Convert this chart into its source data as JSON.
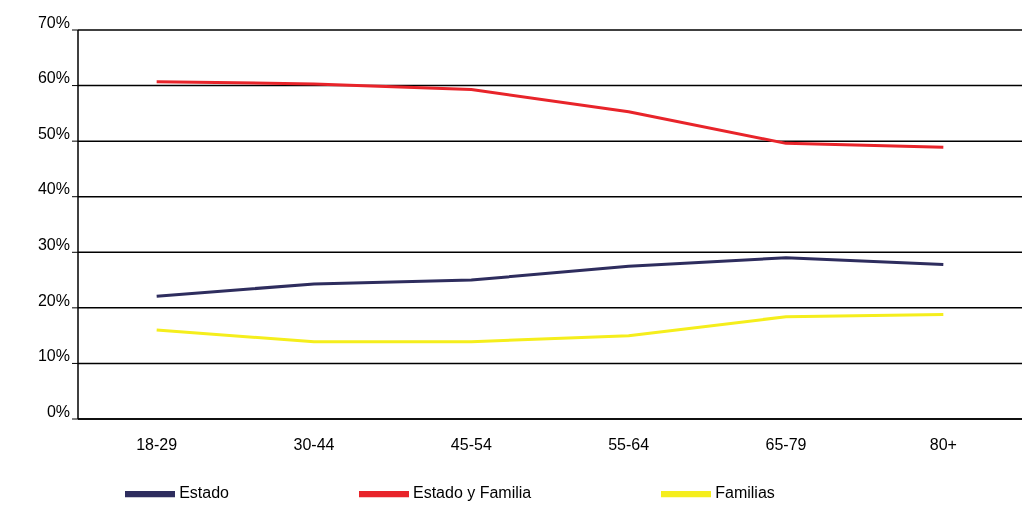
{
  "chart_data": {
    "type": "line",
    "categories": [
      "18-29",
      "30-44",
      "45-54",
      "55-64",
      "65-79",
      "80+"
    ],
    "series": [
      {
        "name": "Estado",
        "color": "#2e2d5e",
        "values": [
          22.1,
          24.3,
          25.0,
          27.5,
          29.0,
          27.8
        ]
      },
      {
        "name": "Familias",
        "color": "#f5ee1c",
        "values": [
          16.0,
          13.9,
          13.9,
          15.0,
          18.4,
          18.8
        ]
      },
      {
        "name": "Estado y Familia",
        "color": "#e8242a",
        "values": [
          60.7,
          60.3,
          59.3,
          55.3,
          49.6,
          48.9
        ]
      }
    ],
    "ylim": [
      0,
      70
    ],
    "yticks": [
      {
        "value": 0,
        "label": "0%"
      },
      {
        "value": 10,
        "label": "10%"
      },
      {
        "value": 20,
        "label": "20%"
      },
      {
        "value": 30,
        "label": "30%"
      },
      {
        "value": 40,
        "label": "40%"
      },
      {
        "value": 50,
        "label": "50%"
      },
      {
        "value": 60,
        "label": "60%"
      },
      {
        "value": 70,
        "label": "70%"
      }
    ],
    "grid": "y",
    "legend": "bottom",
    "marker": "none",
    "line_style": "solid"
  }
}
